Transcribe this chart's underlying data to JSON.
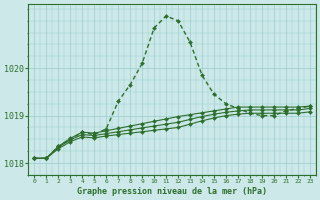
{
  "title": "Graphe pression niveau de la mer (hPa)",
  "bg_color": "#cce8e8",
  "grid_color": "#99cccc",
  "line_color": "#2d6e2d",
  "x_ticks": [
    0,
    1,
    2,
    3,
    4,
    5,
    6,
    7,
    8,
    9,
    10,
    11,
    12,
    13,
    14,
    15,
    16,
    17,
    18,
    19,
    20,
    21,
    22,
    23
  ],
  "ylim": [
    1017.75,
    1021.35
  ],
  "yticks": [
    1018,
    1019,
    1020
  ],
  "series": [
    {
      "x": [
        0,
        1,
        2,
        3,
        4,
        5,
        6,
        7,
        8,
        9,
        10,
        11,
        12,
        13,
        14,
        15,
        16,
        17,
        18,
        19,
        20,
        21,
        22,
        23
      ],
      "y": [
        1018.1,
        1018.1,
        1018.35,
        1018.5,
        1018.65,
        1018.6,
        1018.72,
        1019.3,
        1019.65,
        1020.1,
        1020.85,
        1021.1,
        1021.0,
        1020.55,
        1019.85,
        1019.45,
        1019.25,
        1019.15,
        1019.05,
        1019.0,
        1019.0,
        1019.1,
        1019.15,
        1019.2
      ],
      "style": "dotted",
      "marker": "D",
      "markersize": 2.2,
      "linewidth": 1.0
    },
    {
      "x": [
        0,
        1,
        2,
        3,
        4,
        5,
        6,
        7,
        8,
        9,
        10,
        11,
        12,
        13,
        14,
        15,
        16,
        17,
        18,
        19,
        20,
        21,
        22,
        23
      ],
      "y": [
        1018.1,
        1018.1,
        1018.35,
        1018.52,
        1018.65,
        1018.63,
        1018.68,
        1018.73,
        1018.78,
        1018.83,
        1018.88,
        1018.93,
        1018.98,
        1019.02,
        1019.06,
        1019.1,
        1019.14,
        1019.18,
        1019.18,
        1019.18,
        1019.18,
        1019.18,
        1019.18,
        1019.2
      ],
      "style": "solid",
      "marker": "D",
      "markersize": 2.2,
      "linewidth": 0.8
    },
    {
      "x": [
        0,
        1,
        2,
        3,
        4,
        5,
        6,
        7,
        8,
        9,
        10,
        11,
        12,
        13,
        14,
        15,
        16,
        17,
        18,
        19,
        20,
        21,
        22,
        23
      ],
      "y": [
        1018.1,
        1018.1,
        1018.33,
        1018.49,
        1018.6,
        1018.58,
        1018.62,
        1018.66,
        1018.7,
        1018.74,
        1018.78,
        1018.82,
        1018.86,
        1018.92,
        1018.98,
        1019.03,
        1019.07,
        1019.1,
        1019.12,
        1019.12,
        1019.12,
        1019.12,
        1019.12,
        1019.15
      ],
      "style": "solid",
      "marker": "D",
      "markersize": 2.2,
      "linewidth": 0.8
    },
    {
      "x": [
        0,
        1,
        2,
        3,
        4,
        5,
        6,
        7,
        8,
        9,
        10,
        11,
        12,
        13,
        14,
        15,
        16,
        17,
        18,
        19,
        20,
        21,
        22,
        23
      ],
      "y": [
        1018.1,
        1018.1,
        1018.3,
        1018.45,
        1018.55,
        1018.53,
        1018.57,
        1018.6,
        1018.63,
        1018.66,
        1018.69,
        1018.72,
        1018.75,
        1018.82,
        1018.89,
        1018.95,
        1019.0,
        1019.03,
        1019.05,
        1019.05,
        1019.05,
        1019.05,
        1019.05,
        1019.08
      ],
      "style": "solid",
      "marker": "D",
      "markersize": 2.2,
      "linewidth": 0.8
    }
  ]
}
